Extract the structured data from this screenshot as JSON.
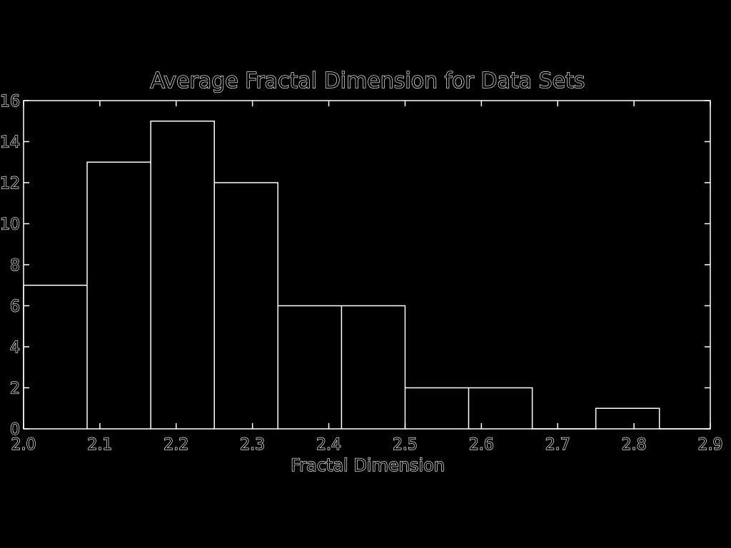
{
  "chart_data": {
    "type": "histogram",
    "title": "Average Fractal Dimension for Data Sets",
    "xlabel": "Fractal Dimension",
    "ylabel": "",
    "xlim": [
      2.0,
      2.9
    ],
    "ylim": [
      0,
      16
    ],
    "x_ticks": [
      "2.0",
      "2.1",
      "2.2",
      "2.3",
      "2.4",
      "2.5",
      "2.6",
      "2.7",
      "2.8",
      "2.9"
    ],
    "y_ticks": [
      "0",
      "2",
      "4",
      "6",
      "8",
      "10",
      "12",
      "14",
      "16"
    ],
    "bin_edges": [
      2.0,
      2.0833,
      2.1667,
      2.25,
      2.3333,
      2.4167,
      2.5,
      2.5833,
      2.6667,
      2.75,
      2.8333,
      2.9167
    ],
    "counts": [
      7,
      13,
      15,
      12,
      6,
      6,
      2,
      2,
      0,
      1,
      0
    ],
    "grid": false,
    "colors": {
      "background": "#000000",
      "foreground": "#ffffff"
    }
  }
}
